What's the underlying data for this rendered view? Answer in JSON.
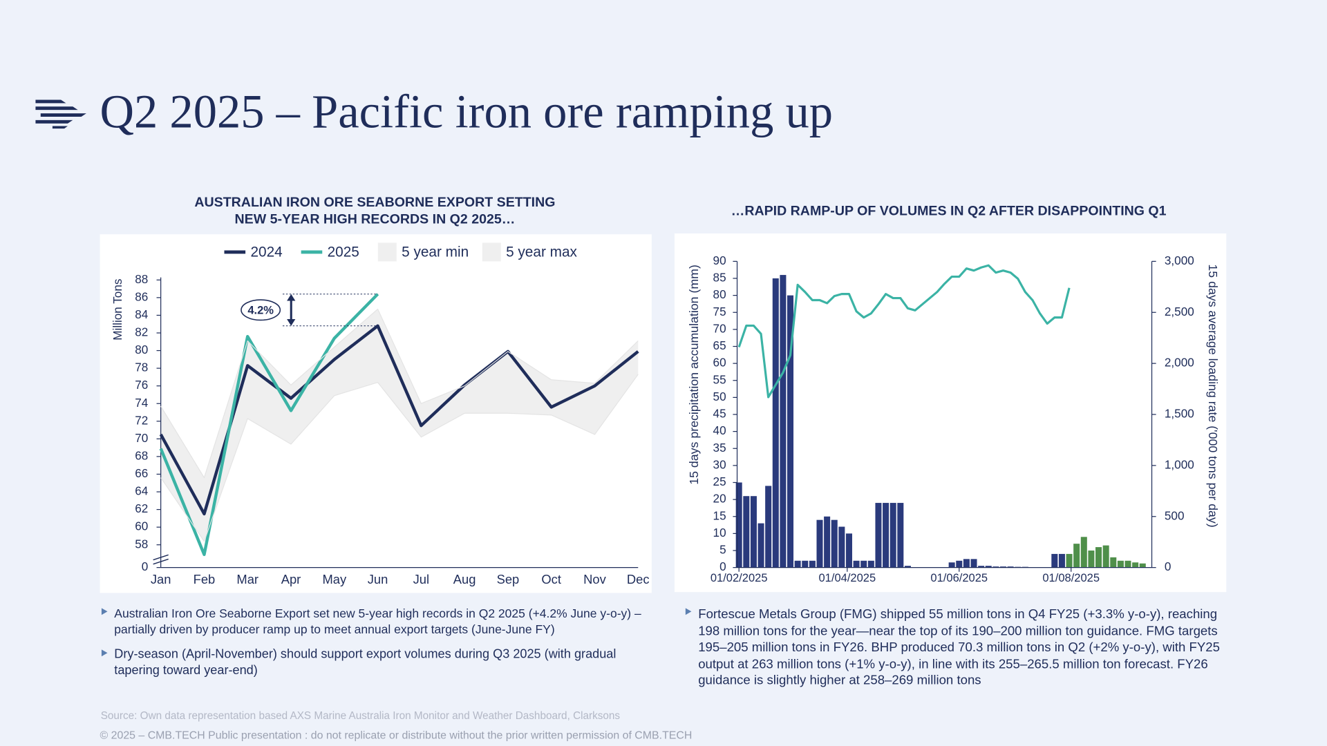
{
  "title": "Q2 2025 – Pacific iron ore ramping up",
  "chart_data": [
    {
      "type": "line",
      "title": [
        "AUSTRALIAN IRON ORE SEABORNE EXPORT SETTING",
        "NEW 5-YEAR HIGH RECORDS IN Q2 2025…"
      ],
      "ylabel": "Million Tons",
      "categories": [
        "Jan",
        "Feb",
        "Mar",
        "Apr",
        "May",
        "Jun",
        "Jul",
        "Aug",
        "Sep",
        "Oct",
        "Nov",
        "Dec"
      ],
      "series": [
        {
          "name": "2024",
          "color": "#1f2d5a",
          "values": [
            70.5,
            61.5,
            78.3,
            74.6,
            79.0,
            82.8,
            71.5,
            76.1,
            79.9,
            73.6,
            76.0,
            79.9
          ]
        },
        {
          "name": "2025",
          "color": "#3bb3a5",
          "values": [
            68.9,
            56.9,
            81.6,
            73.2,
            81.4,
            86.4,
            null,
            null,
            null,
            null,
            null,
            null
          ]
        },
        {
          "name": "5 year min",
          "color": "#efefef",
          "area": "lower",
          "values": [
            65.6,
            58.4,
            72.3,
            69.4,
            74.9,
            76.4,
            70.2,
            72.9,
            72.9,
            72.7,
            70.5,
            77.3
          ]
        },
        {
          "name": "5 year max",
          "color": "#efefef",
          "area": "upper",
          "values": [
            73.7,
            65.6,
            81.1,
            76.1,
            80.4,
            84.7,
            74.0,
            76.0,
            79.9,
            76.7,
            76.3,
            81.1
          ]
        }
      ],
      "ylim": [
        0,
        88
      ],
      "ybreak": [
        0,
        56
      ],
      "yticks": [
        0,
        58,
        60,
        62,
        64,
        66,
        68,
        70,
        72,
        74,
        76,
        78,
        80,
        82,
        84,
        86,
        88
      ],
      "annotation": "4.2%",
      "legend": "top"
    },
    {
      "type": "combo",
      "title": "…RAPID RAMP-UP OF VOLUMES IN Q2 AFTER DISAPPOINTING Q1",
      "ylabel": "15 days precipitation accumulation (mm)",
      "y2label": "15 days average loading rate ('000 tons per day)",
      "x": [
        "01/02/2025",
        "05/02/2025",
        "09/02/2025",
        "13/02/2025",
        "17/02/2025",
        "21/02/2025",
        "25/02/2025",
        "01/03/2025",
        "05/03/2025",
        "09/03/2025",
        "13/03/2025",
        "17/03/2025",
        "21/03/2025",
        "25/03/2025",
        "29/03/2025",
        "02/04/2025",
        "06/04/2025",
        "10/04/2025",
        "14/04/2025",
        "18/04/2025",
        "22/04/2025",
        "26/04/2025",
        "30/04/2025",
        "04/05/2025",
        "08/05/2025",
        "12/05/2025",
        "16/05/2025",
        "20/05/2025",
        "24/05/2025",
        "28/05/2025",
        "01/06/2025",
        "05/06/2025",
        "09/06/2025",
        "13/06/2025",
        "17/06/2025",
        "21/06/2025",
        "25/06/2025",
        "29/06/2025",
        "03/07/2025",
        "07/07/2025",
        "11/07/2025",
        "15/07/2025",
        "19/07/2025",
        "23/07/2025",
        "27/07/2025",
        "31/07/2025",
        "04/08/2025",
        "08/08/2025",
        "12/08/2025",
        "16/08/2025",
        "20/08/2025",
        "24/08/2025",
        "28/08/2025",
        "01/09/2025",
        "05/09/2025",
        "09/09/2025"
      ],
      "series": [
        {
          "type": "bar",
          "axis": "y",
          "values": [
            25,
            21,
            21,
            13,
            24,
            85,
            86,
            80,
            2,
            2,
            2,
            14,
            15,
            14,
            12,
            10,
            2,
            2,
            2,
            19,
            19,
            19,
            19,
            0.5,
            0,
            0,
            0,
            0,
            0,
            1.5,
            2,
            2.5,
            2.5,
            0.5,
            0.5,
            0.3,
            0.3,
            0.3,
            0.2,
            0.2,
            0,
            0,
            0,
            4,
            4,
            4,
            7,
            9,
            5,
            6,
            6.5,
            3,
            2,
            2,
            1.5,
            1.2
          ],
          "colors": [
            "#2a3a7c",
            "#2a3a7c",
            "#2a3a7c",
            "#2a3a7c",
            "#2a3a7c",
            "#2a3a7c",
            "#2a3a7c",
            "#2a3a7c",
            "#2a3a7c",
            "#2a3a7c",
            "#2a3a7c",
            "#2a3a7c",
            "#2a3a7c",
            "#2a3a7c",
            "#2a3a7c",
            "#2a3a7c",
            "#2a3a7c",
            "#2a3a7c",
            "#2a3a7c",
            "#2a3a7c",
            "#2a3a7c",
            "#2a3a7c",
            "#2a3a7c",
            "#2a3a7c",
            "#2a3a7c",
            "#2a3a7c",
            "#2a3a7c",
            "#2a3a7c",
            "#2a3a7c",
            "#2a3a7c",
            "#2a3a7c",
            "#2a3a7c",
            "#2a3a7c",
            "#2a3a7c",
            "#2a3a7c",
            "#2a3a7c",
            "#2a3a7c",
            "#2a3a7c",
            "#2a3a7c",
            "#2a3a7c",
            "#2a3a7c",
            "#2a3a7c",
            "#2a3a7c",
            "#2a3a7c",
            "#2a3a7c",
            "#4f8f4a",
            "#4f8f4a",
            "#4f8f4a",
            "#4f8f4a",
            "#4f8f4a",
            "#4f8f4a",
            "#4f8f4a",
            "#4f8f4a",
            "#4f8f4a",
            "#4f8f4a",
            "#4f8f4a"
          ]
        },
        {
          "type": "line",
          "axis": "y2",
          "color": "#3bb3a5",
          "values": [
            2160,
            2370,
            2370,
            2290,
            1670,
            1790,
            1910,
            2080,
            2770,
            2700,
            2620,
            2620,
            2590,
            2660,
            2680,
            2680,
            2510,
            2450,
            2490,
            2580,
            2680,
            2640,
            2640,
            2540,
            2520,
            2580,
            2640,
            2700,
            2780,
            2850,
            2850,
            2930,
            2910,
            2940,
            2960,
            2890,
            2910,
            2890,
            2830,
            2700,
            2620,
            2490,
            2390,
            2450,
            2450,
            2740,
            null,
            null,
            null,
            null,
            null,
            null,
            null,
            null,
            null,
            null
          ]
        }
      ],
      "xlim": [
        "31/01/2025",
        "14/09/2025"
      ],
      "xticks": [
        "01/02/2025",
        "01/04/2025",
        "01/06/2025",
        "01/08/2025"
      ],
      "ylim": [
        0,
        90
      ],
      "yticks": [
        0,
        5,
        10,
        15,
        20,
        25,
        30,
        35,
        40,
        45,
        50,
        55,
        60,
        65,
        70,
        75,
        80,
        85,
        90
      ],
      "y2lim": [
        0,
        3000
      ],
      "y2ticks": [
        0,
        500,
        {
          "value": 1000,
          "label": "1,000"
        },
        {
          "value": 1500,
          "label": "1,500"
        },
        {
          "value": 2000,
          "label": "2,000"
        },
        {
          "value": 2500,
          "label": "2,500"
        },
        {
          "value": 3000,
          "label": "3,000"
        }
      ]
    }
  ],
  "bullets_left": [
    "Australian Iron Ore Seaborne Export set new 5-year high records in Q2 2025 (+4.2% June y-o-y) – partially driven by producer ramp up to meet annual export targets (June-June FY)",
    "Dry-season (April-November) should support export volumes during Q3 2025 (with gradual tapering toward year-end)"
  ],
  "bullets_right": [
    "Fortescue Metals Group (FMG) shipped 55 million tons in Q4 FY25 (+3.3% y-o-y), reaching 198 million tons for the year—near the top of its 190–200 million ton guidance. FMG targets 195–205 million tons in FY26. BHP produced 70.3 million tons in Q2 (+2% y-o-y), with FY25 output at 263 million tons (+1% y-o-y), in line with its 255–265.5 million ton forecast. FY26 guidance is slightly higher at 258–269 million tons"
  ],
  "source": "Source:  Own data representation based AXS Marine Australia Iron Monitor and Weather Dashboard, Clarksons",
  "copyright": "© 2025 – CMB.TECH Public presentation : do not replicate or distribute without the prior written permission of CMB.TECH"
}
